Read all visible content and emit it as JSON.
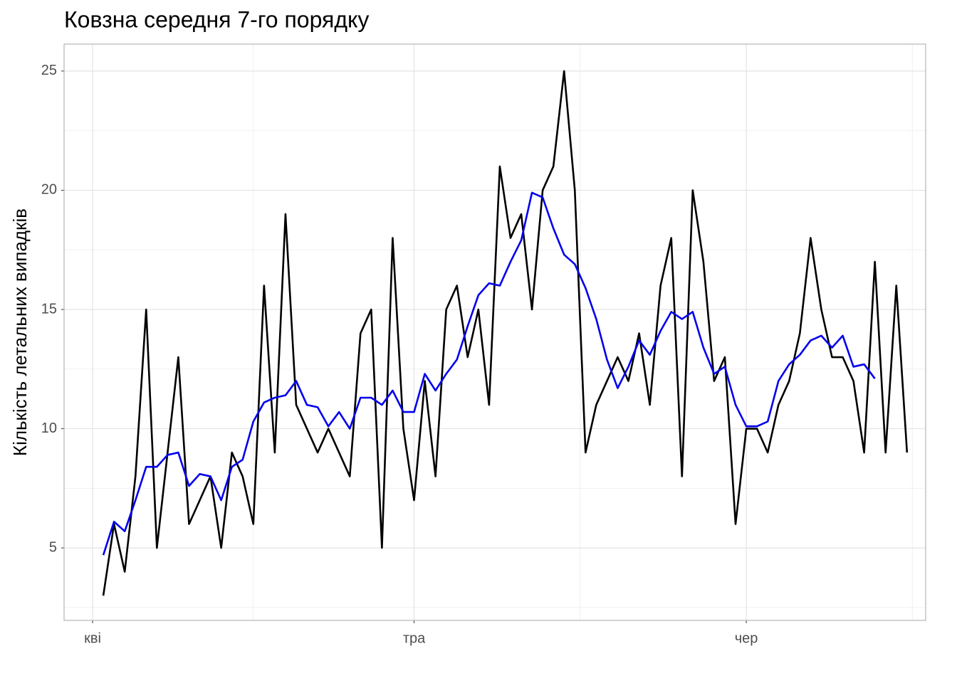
{
  "chart_data": {
    "type": "line",
    "title": "Ковзна середня 7-го порядку",
    "y_label": "Кількість летальних випадків",
    "x": [
      1,
      2,
      3,
      4,
      5,
      6,
      7,
      8,
      9,
      10,
      11,
      12,
      13,
      14,
      15,
      16,
      17,
      18,
      19,
      20,
      21,
      22,
      23,
      24,
      25,
      26,
      27,
      28,
      29,
      30,
      31,
      32,
      33,
      34,
      35,
      36,
      37,
      38,
      39,
      40,
      41,
      42,
      43,
      44,
      45,
      46,
      47,
      48,
      49,
      50,
      51,
      52,
      53,
      54,
      55,
      56,
      57,
      58,
      59,
      60,
      61,
      62,
      63,
      64,
      65,
      66,
      67,
      68,
      69,
      70,
      71,
      72,
      73,
      74,
      75,
      76
    ],
    "series": [
      {
        "name": "Кількість",
        "color": "#000000",
        "values": [
          3,
          6,
          4,
          8,
          15,
          5,
          9,
          13,
          6,
          7,
          8,
          5,
          9,
          8,
          6,
          16,
          9,
          19,
          11,
          10,
          9,
          10,
          9,
          8,
          14,
          15,
          5,
          18,
          10,
          7,
          12,
          8,
          15,
          16,
          13,
          15,
          11,
          21,
          18,
          19,
          15,
          20,
          21,
          25,
          20,
          9,
          11,
          12,
          13,
          12,
          14,
          11,
          16,
          18,
          8,
          20,
          17,
          12,
          13,
          6,
          10,
          10,
          9,
          11,
          12,
          14,
          18,
          15,
          13,
          13,
          12,
          9,
          17,
          9,
          16,
          9
        ]
      },
      {
        "name": "Ковзна середня",
        "color": "#0000ee",
        "values": [
          4.7,
          6.1,
          5.7,
          7,
          8.4,
          8.4,
          8.9,
          9,
          7.6,
          8.1,
          8,
          7,
          8.4,
          8.7,
          10.3,
          11.1,
          11.3,
          11.4,
          12,
          11,
          10.9,
          10.1,
          10.7,
          10,
          11.3,
          11.3,
          11,
          11.6,
          10.7,
          10.7,
          12.3,
          11.6,
          12.3,
          12.9,
          14.3,
          15.6,
          16.1,
          16,
          17,
          17.9,
          19.9,
          19.7,
          18.4,
          17.3,
          16.9,
          15.9,
          14.6,
          12.9,
          11.7,
          12.6,
          13.7,
          13.1,
          14.1,
          14.9,
          14.6,
          14.9,
          13.4,
          12.3,
          12.6,
          11,
          10.1,
          10.1,
          10.3,
          12,
          12.7,
          13.1,
          13.7,
          13.9,
          13.4,
          13.9,
          12.6,
          12.7,
          12.1,
          null,
          null,
          null
        ]
      }
    ],
    "xlim": [
      -2.66,
      77.74
    ],
    "xticks": [
      {
        "value": 0,
        "label": "кві"
      },
      {
        "value": 30,
        "label": "тра"
      },
      {
        "value": 61,
        "label": "чер"
      }
    ],
    "ylim": [
      1.96,
      26.13
    ],
    "yticks": [
      5,
      10,
      15,
      20,
      25
    ],
    "grid": true
  }
}
